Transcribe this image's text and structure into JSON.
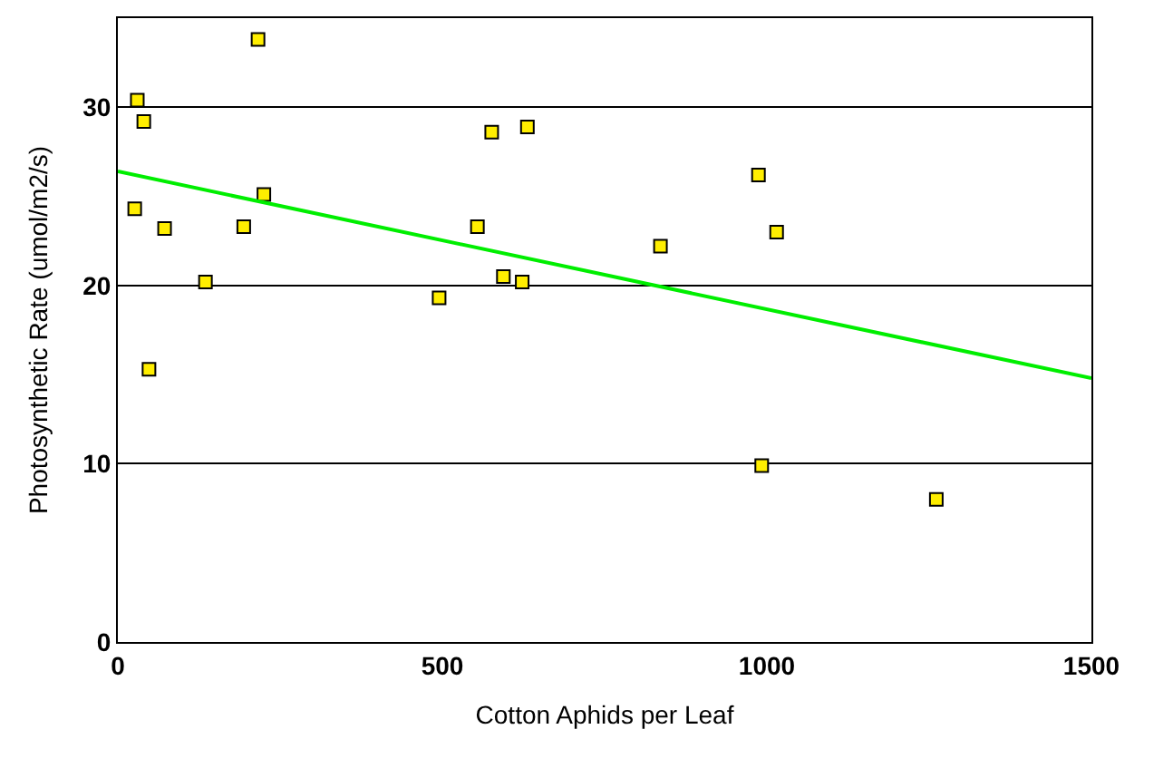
{
  "chart_data": {
    "type": "scatter",
    "xlabel": "Cotton Aphids per Leaf",
    "ylabel": "Photosynthetic Rate (umol/m2/s)",
    "xlim": [
      0,
      1500
    ],
    "ylim": [
      0,
      35
    ],
    "xticks": [
      0,
      500,
      1000,
      1500
    ],
    "yticks": [
      0,
      10,
      20,
      30
    ],
    "grid": "y",
    "legend": false,
    "series": [
      {
        "marker": "square",
        "color": "#ffee00",
        "x": [
          30,
          40,
          216,
          576,
          631,
          225,
          26,
          72,
          194,
          554,
          135,
          594,
          623,
          495,
          48,
          836,
          987,
          1015,
          992,
          1261
        ],
        "values": [
          30.4,
          29.2,
          33.8,
          28.6,
          28.9,
          25.1,
          24.3,
          23.2,
          23.3,
          23.3,
          20.2,
          20.5,
          20.2,
          19.3,
          15.3,
          22.2,
          26.2,
          23.0,
          9.9,
          8.0
        ]
      },
      {
        "type": "line",
        "marker": "none",
        "color": "#00ee00",
        "x": [
          0,
          1500
        ],
        "values": [
          26.4,
          14.8
        ]
      }
    ]
  }
}
